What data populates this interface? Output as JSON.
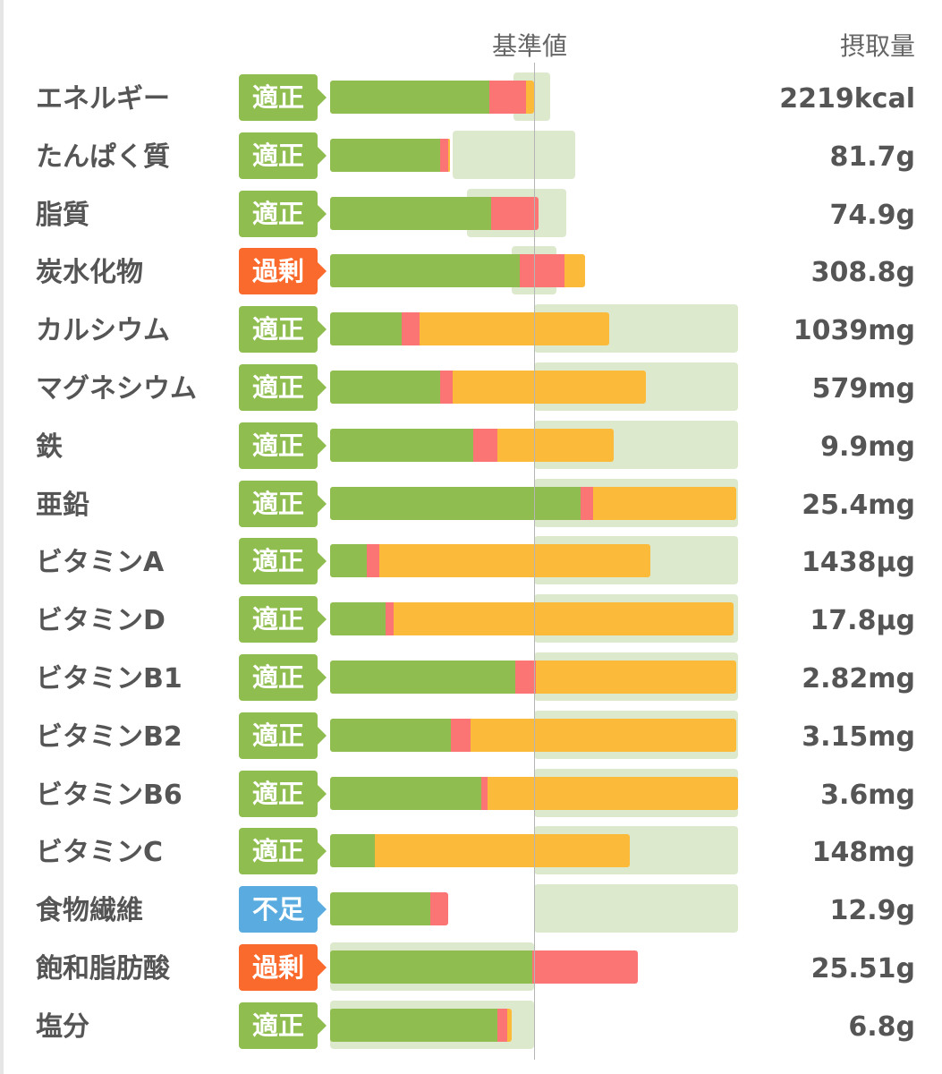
{
  "header": {
    "reference_label": "基準値",
    "intake_label": "摂取量"
  },
  "colors": {
    "green": "#8fbd4f",
    "red": "#fb7575",
    "orange": "#fbba39",
    "band": "#dde9cc",
    "badge_ok": "#8fbd4f",
    "badge_over": "#f96a2c",
    "badge_short": "#5aace0"
  },
  "chart_data": {
    "type": "bar",
    "reference_line": 100,
    "segment_legend": [
      "green",
      "red",
      "orange"
    ],
    "rows": [
      {
        "name": "エネルギー",
        "status": "適正",
        "status_key": "ok",
        "value": "2219kcal",
        "segments": [
          78,
          18,
          4
        ],
        "band": [
          90,
          108
        ]
      },
      {
        "name": "たんぱく質",
        "status": "適正",
        "status_key": "ok",
        "value": "81.7g",
        "segments": [
          54,
          4,
          1
        ],
        "band": [
          60,
          120
        ]
      },
      {
        "name": "脂質",
        "status": "適正",
        "status_key": "ok",
        "value": "74.9g",
        "segments": [
          79,
          23,
          0
        ],
        "band": [
          67,
          116
        ]
      },
      {
        "name": "炭水化物",
        "status": "過剰",
        "status_key": "over",
        "value": "308.8g",
        "segments": [
          93,
          22,
          10
        ],
        "band": [
          89,
          111
        ]
      },
      {
        "name": "カルシウム",
        "status": "適正",
        "status_key": "ok",
        "value": "1039mg",
        "segments": [
          35,
          9,
          93
        ],
        "band": [
          100,
          200
        ]
      },
      {
        "name": "マグネシウム",
        "status": "適正",
        "status_key": "ok",
        "value": "579mg",
        "segments": [
          54,
          6,
          95
        ],
        "band": [
          100,
          200
        ]
      },
      {
        "name": "鉄",
        "status": "適正",
        "status_key": "ok",
        "value": "9.9mg",
        "segments": [
          70,
          12,
          57
        ],
        "band": [
          100,
          200
        ]
      },
      {
        "name": "亜鉛",
        "status": "適正",
        "status_key": "ok",
        "value": "25.4mg",
        "segments": [
          123,
          6,
          70
        ],
        "band": [
          100,
          200
        ]
      },
      {
        "name": "ビタミンA",
        "status": "適正",
        "status_key": "ok",
        "value": "1438µg",
        "segments": [
          18,
          6,
          133
        ],
        "band": [
          100,
          200
        ]
      },
      {
        "name": "ビタミンD",
        "status": "適正",
        "status_key": "ok",
        "value": "17.8µg",
        "segments": [
          27,
          4,
          167
        ],
        "band": [
          100,
          200
        ]
      },
      {
        "name": "ビタミンB1",
        "status": "適正",
        "status_key": "ok",
        "value": "2.82mg",
        "segments": [
          91,
          10,
          98
        ],
        "band": [
          100,
          200
        ]
      },
      {
        "name": "ビタミンB2",
        "status": "適正",
        "status_key": "ok",
        "value": "3.15mg",
        "segments": [
          59,
          10,
          130
        ],
        "band": [
          100,
          200
        ]
      },
      {
        "name": "ビタミンB6",
        "status": "適正",
        "status_key": "ok",
        "value": "3.6mg",
        "segments": [
          74,
          3,
          123
        ],
        "band": [
          100,
          200
        ]
      },
      {
        "name": "ビタミンC",
        "status": "適正",
        "status_key": "ok",
        "value": "148mg",
        "segments": [
          22,
          0,
          125
        ],
        "band": [
          100,
          200
        ]
      },
      {
        "name": "食物繊維",
        "status": "不足",
        "status_key": "short",
        "value": "12.9g",
        "segments": [
          49,
          9,
          0
        ],
        "band": [
          100,
          200
        ]
      },
      {
        "name": "飽和脂肪酸",
        "status": "過剰",
        "status_key": "over",
        "value": "25.51g",
        "segments": [
          99,
          52,
          0
        ],
        "band": [
          0,
          100
        ]
      },
      {
        "name": "塩分",
        "status": "適正",
        "status_key": "ok",
        "value": "6.8g",
        "segments": [
          82,
          5,
          2
        ],
        "band": [
          0,
          100
        ]
      }
    ]
  }
}
